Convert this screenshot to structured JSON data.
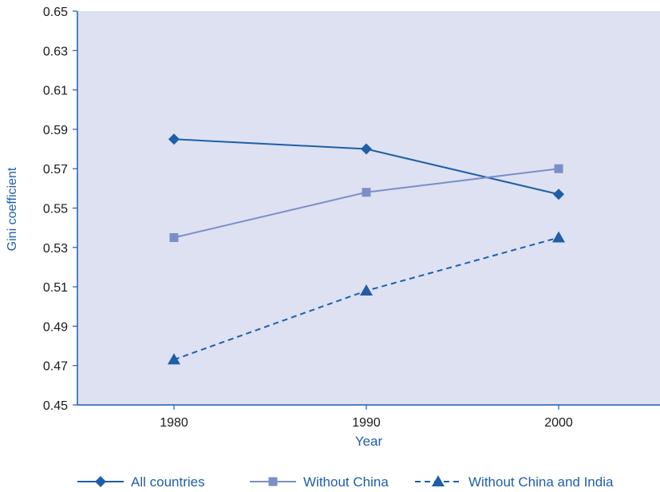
{
  "chart_data": {
    "type": "line",
    "title": "",
    "xlabel": "Year",
    "ylabel": "Gini coefficient",
    "categories": [
      "1980",
      "1990",
      "2000"
    ],
    "ylim": [
      0.45,
      0.65
    ],
    "yticks": [
      "0.45",
      "0.47",
      "0.49",
      "0.51",
      "0.53",
      "0.55",
      "0.57",
      "0.59",
      "0.61",
      "0.63",
      "0.65"
    ],
    "grid": false,
    "plot_background": "#dde1f2",
    "legend_position": "bottom",
    "series": [
      {
        "name": "All countries",
        "values": [
          0.585,
          0.58,
          0.557
        ],
        "color": "#1f5fa8",
        "marker": "diamond",
        "dash": "solid"
      },
      {
        "name": "Without China",
        "values": [
          0.535,
          0.558,
          0.57
        ],
        "color": "#7b8ec8",
        "marker": "square",
        "dash": "solid"
      },
      {
        "name": "Without China and India",
        "values": [
          0.473,
          0.508,
          0.535
        ],
        "color": "#1f5fa8",
        "marker": "triangle",
        "dash": "dashed"
      }
    ]
  }
}
